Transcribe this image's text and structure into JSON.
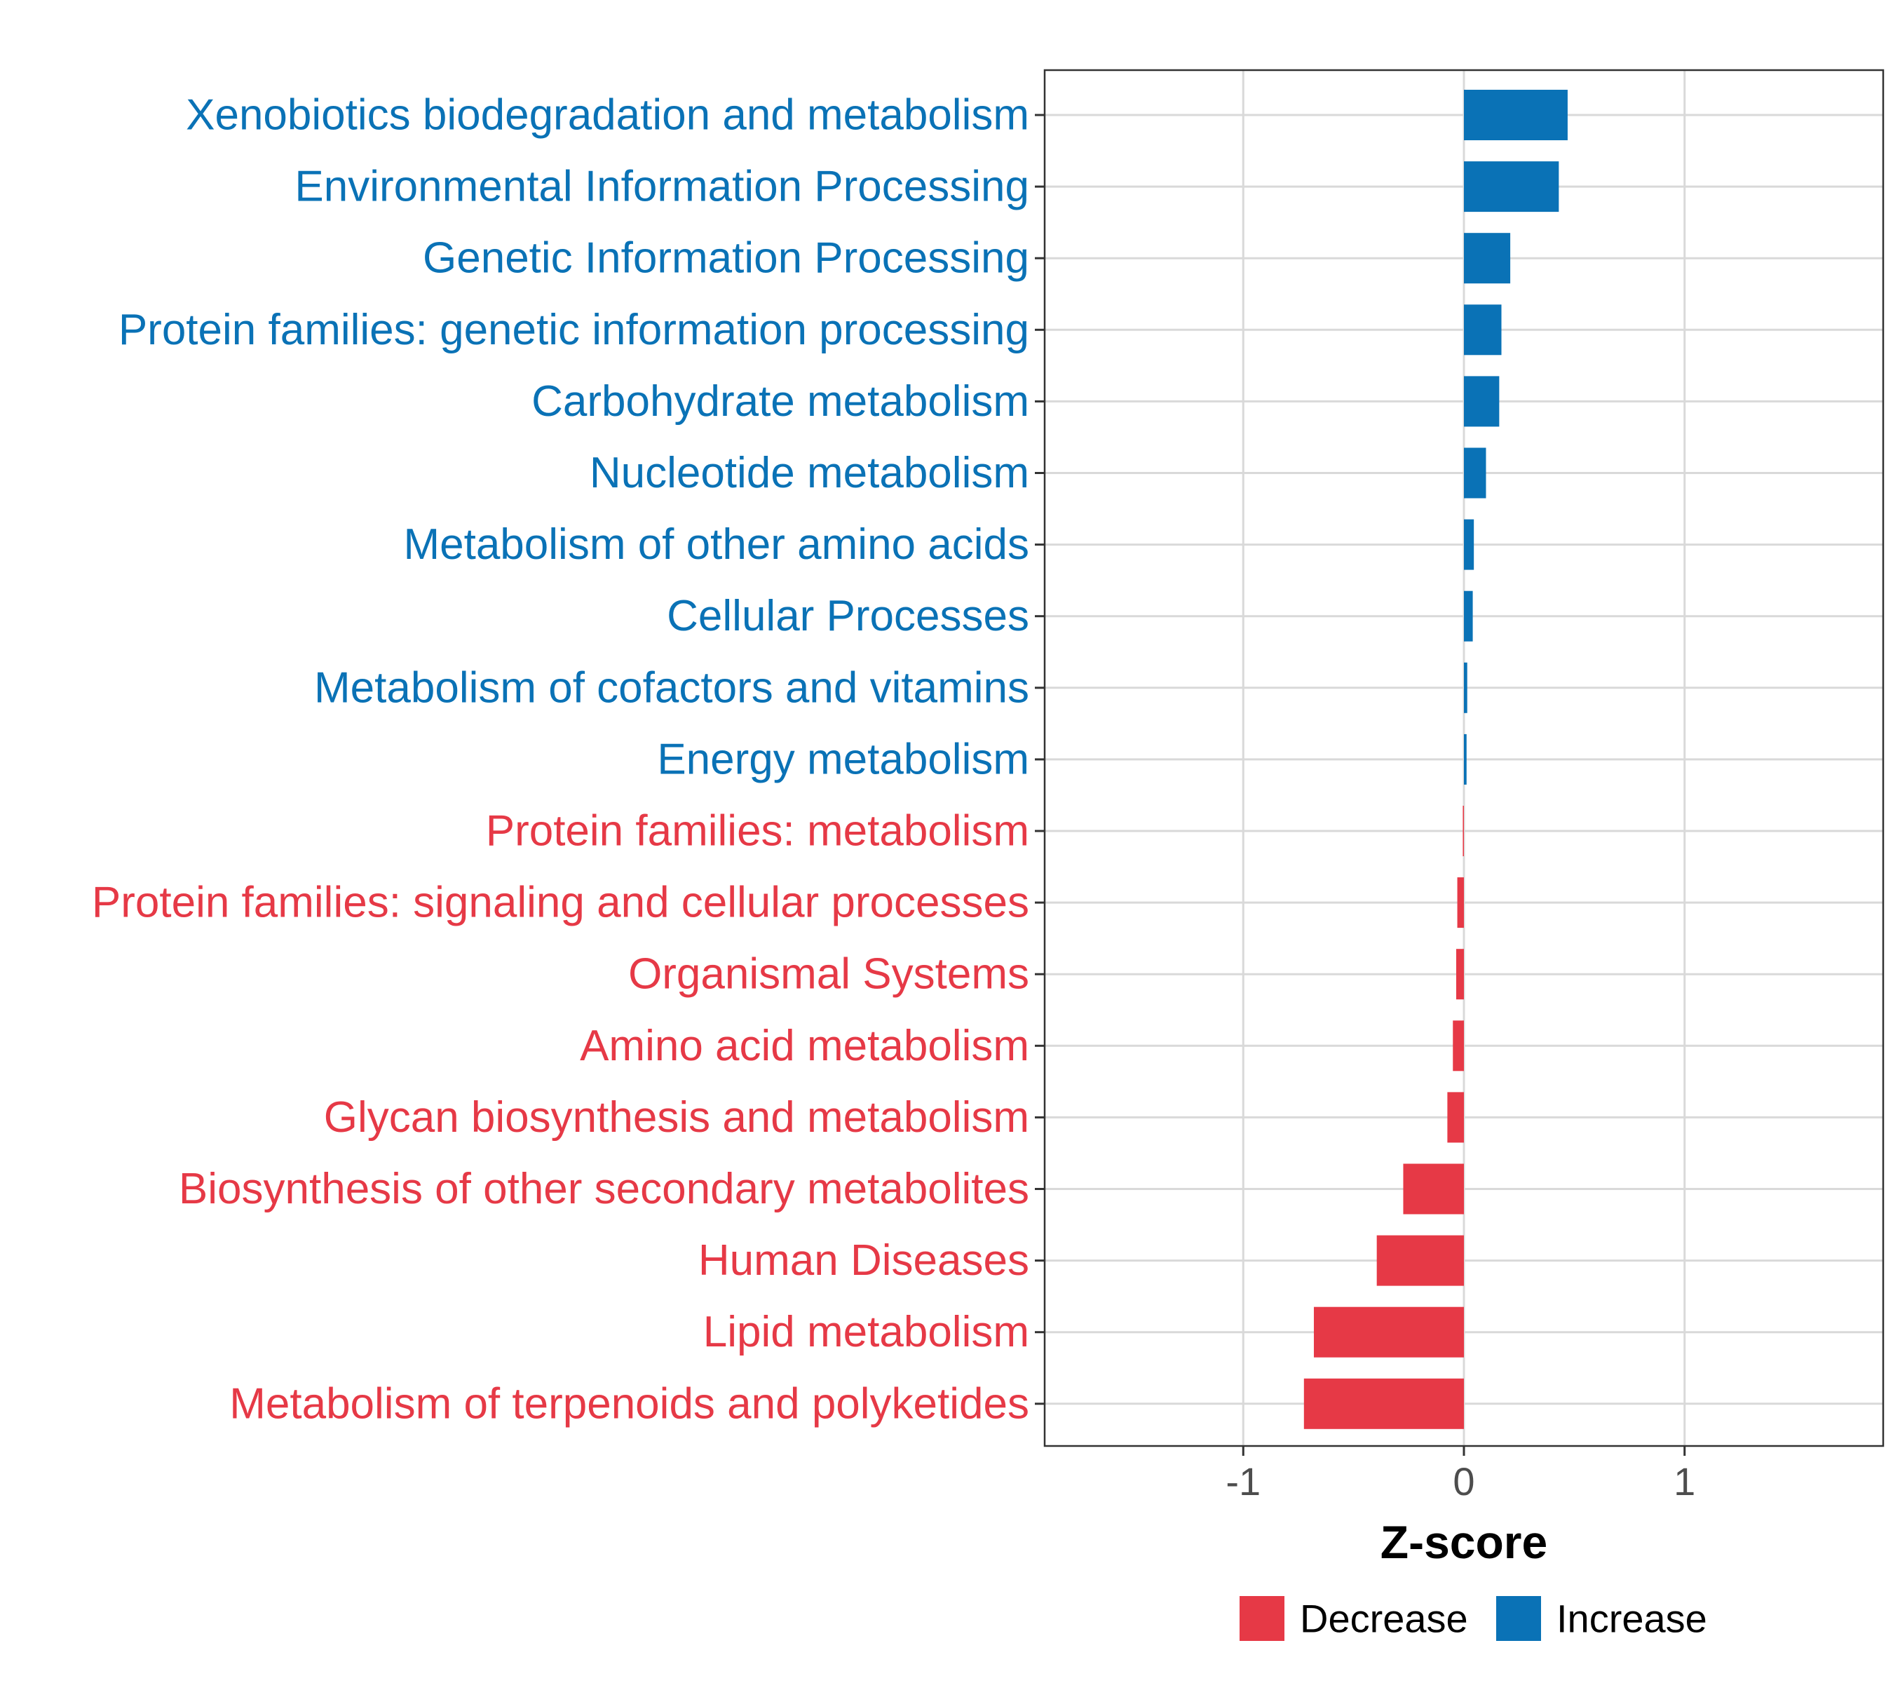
{
  "chart_data": {
    "type": "bar",
    "orientation": "horizontal",
    "xlabel": "Z-score",
    "ylabel": "",
    "xlim": [
      -1.9,
      1.9
    ],
    "xticks": [
      -1,
      0,
      1
    ],
    "xtick_labels": [
      "-1",
      "0",
      "1"
    ],
    "grid": true,
    "legend_position": "bottom",
    "colors": {
      "Decrease": "#e63946",
      "Increase": "#0a72b6"
    },
    "legend": [
      {
        "name": "Decrease",
        "color": "#e63946"
      },
      {
        "name": "Increase",
        "color": "#0a72b6"
      }
    ],
    "categories": [
      "Xenobiotics biodegradation and metabolism",
      "Environmental Information Processing",
      "Genetic Information Processing",
      "Protein families: genetic information processing",
      "Carbohydrate metabolism",
      "Nucleotide metabolism",
      "Metabolism of other amino acids",
      "Cellular Processes",
      "Metabolism of cofactors and vitamins",
      "Energy metabolism",
      "Protein families: metabolism",
      "Protein families: signaling and cellular processes",
      "Organismal Systems",
      "Amino acid metabolism",
      "Glycan biosynthesis and metabolism",
      "Biosynthesis of other secondary metabolites",
      "Human Diseases",
      "Lipid metabolism",
      "Metabolism of terpenoids and polyketides"
    ],
    "values": [
      0.47,
      0.43,
      0.21,
      0.17,
      0.16,
      0.1,
      0.045,
      0.04,
      0.015,
      0.012,
      -0.005,
      -0.03,
      -0.035,
      -0.05,
      -0.075,
      -0.275,
      -0.395,
      -0.68,
      -0.725
    ],
    "groups": [
      "Increase",
      "Increase",
      "Increase",
      "Increase",
      "Increase",
      "Increase",
      "Increase",
      "Increase",
      "Increase",
      "Increase",
      "Decrease",
      "Decrease",
      "Decrease",
      "Decrease",
      "Decrease",
      "Decrease",
      "Decrease",
      "Decrease",
      "Decrease"
    ]
  }
}
